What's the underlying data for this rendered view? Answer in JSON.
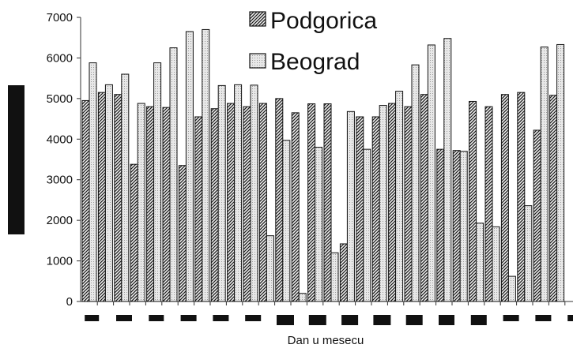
{
  "chart_data": {
    "type": "bar",
    "title": "",
    "xlabel": "Dan u mesecu",
    "ylabel": "",
    "ylim": [
      0,
      7000
    ],
    "yticks": [
      "0",
      "1000",
      "2000",
      "3000",
      "4000",
      "5000",
      "6000",
      "7000"
    ],
    "grid": false,
    "legend_position": "top",
    "categories": [
      "1",
      "2",
      "3",
      "4",
      "5",
      "6",
      "7",
      "8",
      "9",
      "10",
      "11",
      "12",
      "13",
      "14",
      "15",
      "16",
      "17",
      "18",
      "19",
      "20",
      "21",
      "22",
      "23",
      "24",
      "25",
      "26",
      "27",
      "28",
      "29",
      "30"
    ],
    "series": [
      {
        "name": "Podgorica",
        "pattern": "hatched-dark",
        "values": [
          4950,
          5150,
          5100,
          3380,
          4800,
          4780,
          3350,
          4550,
          4750,
          4880,
          4800,
          4880,
          5000,
          4650,
          4870,
          4870,
          1420,
          4550,
          4550,
          4880,
          4800,
          5100,
          3750,
          3720,
          4930,
          4800,
          5100,
          5150,
          4220,
          5080
        ]
      },
      {
        "name": "Beograd",
        "pattern": "dotted-light",
        "values": [
          5880,
          5340,
          5600,
          4880,
          5880,
          6250,
          6650,
          6700,
          5320,
          5340,
          5330,
          1620,
          3970,
          200,
          3800,
          1200,
          4680,
          3750,
          4830,
          5180,
          5830,
          6320,
          6480,
          3700,
          1930,
          1840,
          620,
          2360,
          6270,
          6330
        ]
      }
    ]
  }
}
